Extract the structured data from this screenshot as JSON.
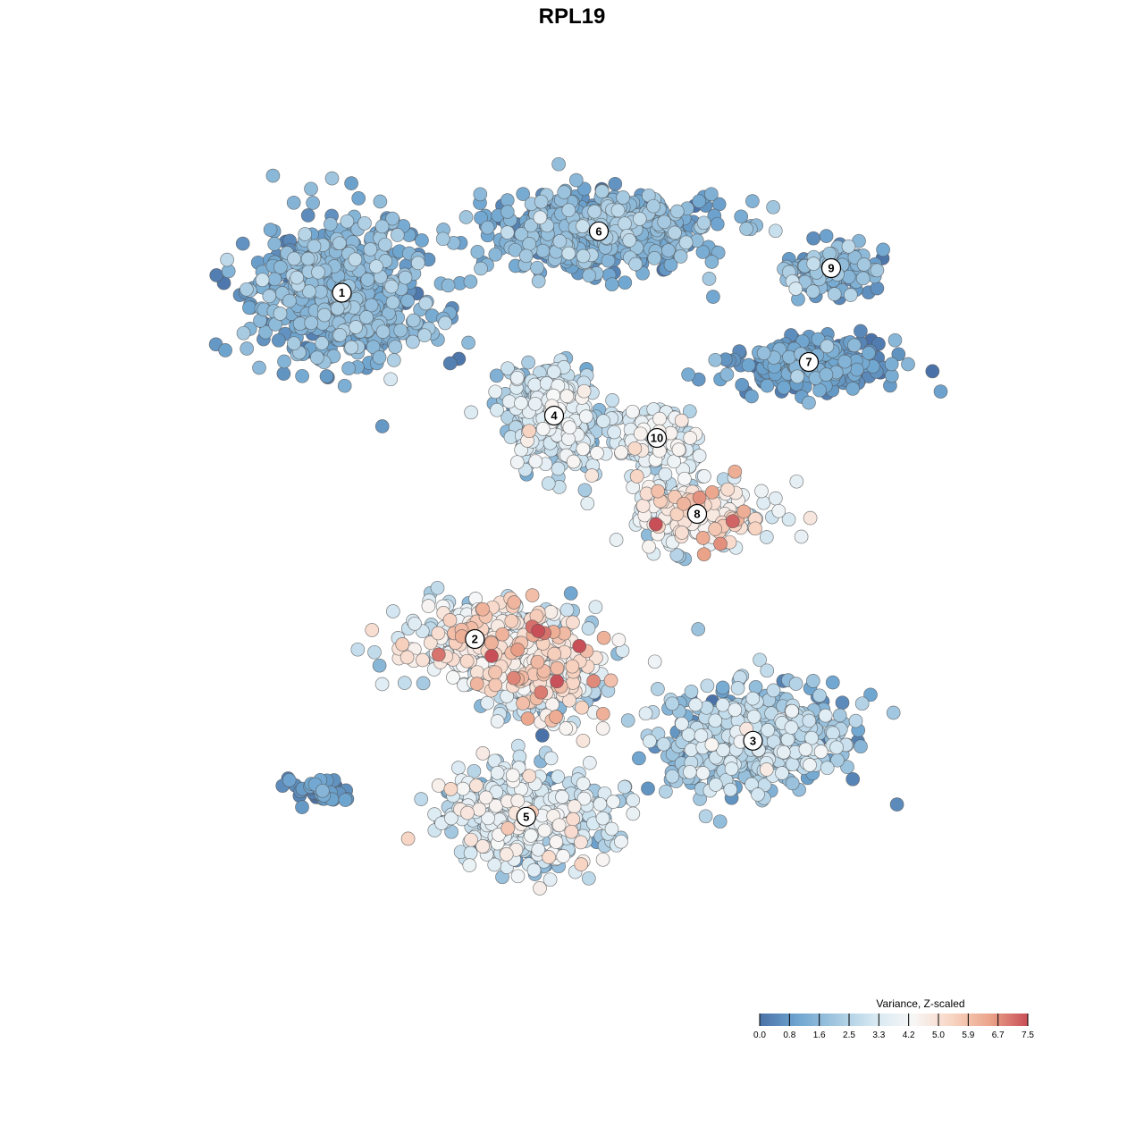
{
  "chart_data": {
    "type": "scatter",
    "title": "RPL19",
    "xlabel": "",
    "ylabel": "",
    "grid": false,
    "x_range": [
      -40,
      40
    ],
    "y_range": [
      -40,
      40
    ],
    "legend": {
      "title": "Variance, Z-scaled",
      "placement": "bottom-right",
      "ticks": [
        "0.0",
        "0.8",
        "1.6",
        "2.5",
        "3.3",
        "4.2",
        "5.0",
        "5.9",
        "6.7",
        "7.5"
      ],
      "range": [
        0,
        7.5
      ],
      "colors": [
        "#4a72a8",
        "#6fa6d0",
        "#a3c8e0",
        "#d6e8f2",
        "#f7f7f7",
        "#f8d5c4",
        "#eba58b",
        "#c84e57"
      ]
    },
    "clusters": [
      {
        "label": "1",
        "x": -20.6,
        "y": 25.0,
        "sx": 7.0,
        "sy": 6.0,
        "n": 650,
        "mean": 1.3,
        "sd": 0.6
      },
      {
        "label": "6",
        "x": 2.4,
        "y": 30.5,
        "sx": 9.5,
        "sy": 3.2,
        "n": 520,
        "mean": 1.4,
        "sd": 0.6
      },
      {
        "label": "9",
        "x": 23.2,
        "y": 27.2,
        "sx": 3.5,
        "sy": 2.2,
        "n": 130,
        "mean": 1.2,
        "sd": 0.7
      },
      {
        "label": "7",
        "x": 21.2,
        "y": 18.8,
        "sx": 6.5,
        "sy": 2.3,
        "n": 240,
        "mean": 0.8,
        "sd": 0.5
      },
      {
        "label": "4",
        "x": -1.6,
        "y": 14.0,
        "sx": 4.0,
        "sy": 4.0,
        "n": 380,
        "mean": 2.7,
        "sd": 0.8
      },
      {
        "label": "10",
        "x": 7.6,
        "y": 12.0,
        "sx": 3.2,
        "sy": 3.3,
        "n": 150,
        "mean": 3.4,
        "sd": 0.7
      },
      {
        "label": "8",
        "x": 11.2,
        "y": 5.2,
        "sx": 5.5,
        "sy": 2.6,
        "n": 220,
        "mean": 4.1,
        "sd": 1.3
      },
      {
        "label": "2",
        "x": -8.7,
        "y": -6.0,
        "sx": 6.0,
        "sy": 3.0,
        "n": 280,
        "mean": 3.8,
        "sd": 1.0
      },
      {
        "label": "3",
        "x": 16.2,
        "y": -15.1,
        "sx": 7.5,
        "sy": 4.5,
        "n": 520,
        "mean": 2.0,
        "sd": 0.9
      },
      {
        "label": "5",
        "x": -4.1,
        "y": -21.9,
        "sx": 6.5,
        "sy": 4.0,
        "n": 520,
        "mean": 2.9,
        "sd": 0.9
      },
      {
        "label": "",
        "x": -3.0,
        "y": -8.5,
        "sx": 5.0,
        "sy": 4.5,
        "n": 380,
        "mean": 3.6,
        "sd": 1.6
      },
      {
        "label": "",
        "x": -22.5,
        "y": -19.5,
        "sx": 2.5,
        "sy": 1.3,
        "n": 40,
        "mean": 0.6,
        "sd": 0.4
      }
    ]
  }
}
